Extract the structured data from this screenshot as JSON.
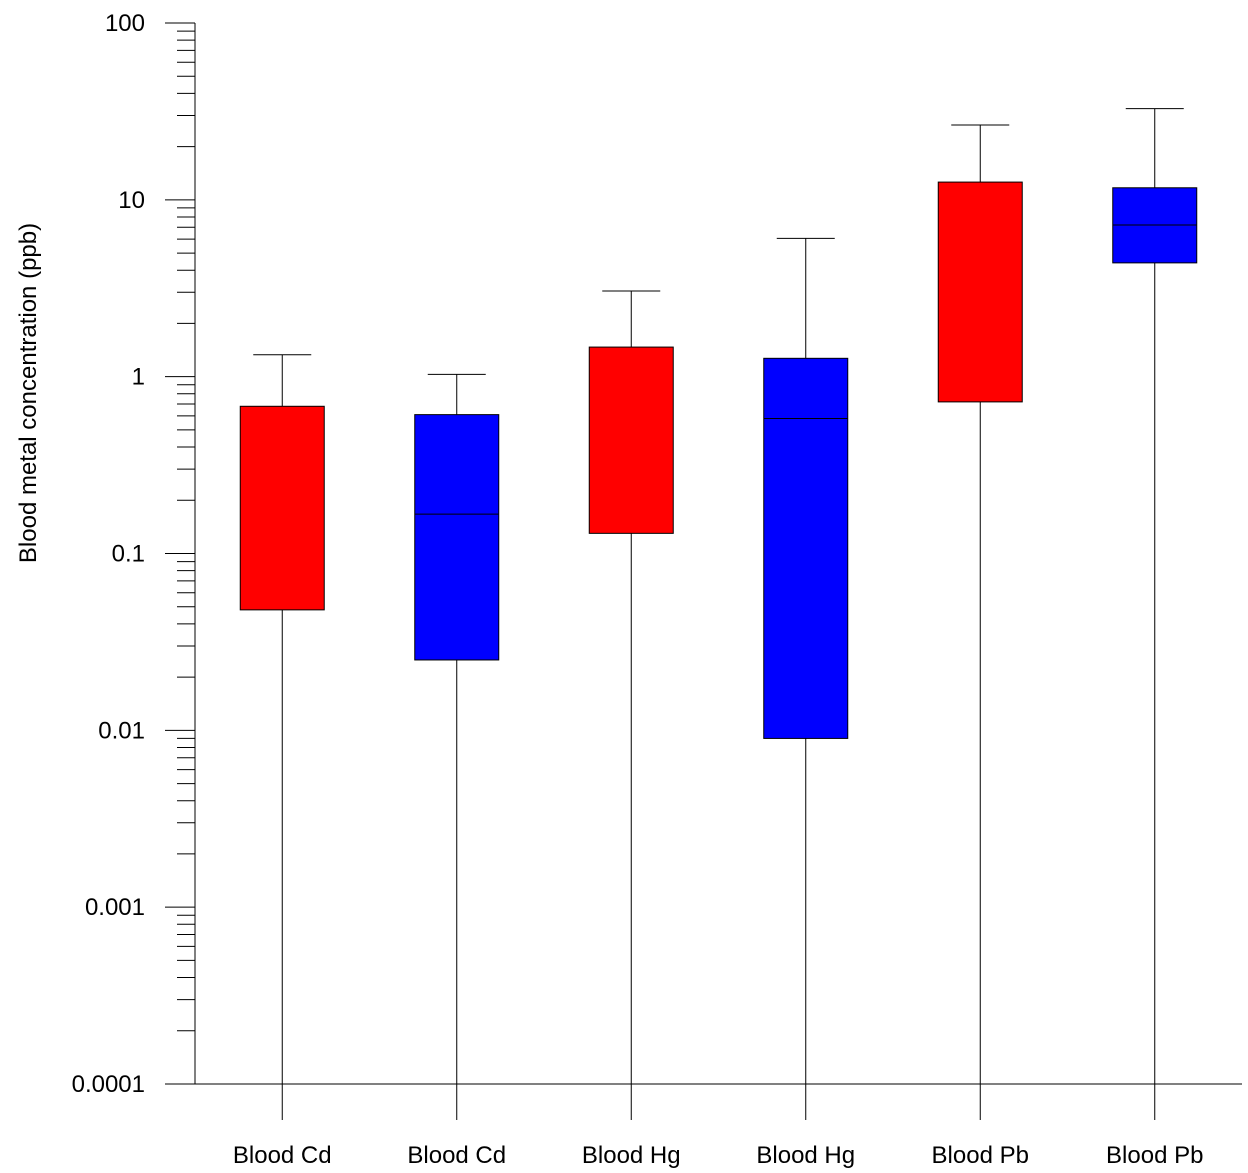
{
  "chart_data": {
    "type": "box",
    "ylabel": "Blood metal concentration (ppb)",
    "yscale": "log",
    "ylim": [
      0.0001,
      100
    ],
    "yticks": [
      {
        "value": 100,
        "label": "100"
      },
      {
        "value": 10,
        "label": "10"
      },
      {
        "value": 1,
        "label": "1"
      },
      {
        "value": 0.1,
        "label": "0.1"
      },
      {
        "value": 0.01,
        "label": "0.01"
      },
      {
        "value": 0.001,
        "label": "0.001"
      },
      {
        "value": 0.0001,
        "label": "0.0001"
      }
    ],
    "boxes": [
      {
        "label": "Blood Cd",
        "color": "#ff0000",
        "min": 0.0001,
        "q1": 0.048,
        "median": null,
        "q3": 0.68,
        "max": 1.33
      },
      {
        "label": "Blood Cd",
        "color": "#0000ff",
        "min": 0.0001,
        "q1": 0.025,
        "median": 0.167,
        "q3": 0.61,
        "max": 1.03
      },
      {
        "label": "Blood Hg",
        "color": "#ff0000",
        "min": 0.0001,
        "q1": 0.13,
        "median": null,
        "q3": 1.47,
        "max": 3.05
      },
      {
        "label": "Blood Hg",
        "color": "#0000ff",
        "min": 0.0001,
        "q1": 0.009,
        "median": 0.58,
        "q3": 1.27,
        "max": 6.05
      },
      {
        "label": "Blood Pb",
        "color": "#ff0000",
        "min": 0.0001,
        "q1": 0.72,
        "median": null,
        "q3": 12.6,
        "max": 26.5
      },
      {
        "label": "Blood Pb",
        "color": "#0000ff",
        "min": 0.0001,
        "q1": 4.4,
        "median": 7.2,
        "q3": 11.7,
        "max": 32.8
      }
    ]
  }
}
